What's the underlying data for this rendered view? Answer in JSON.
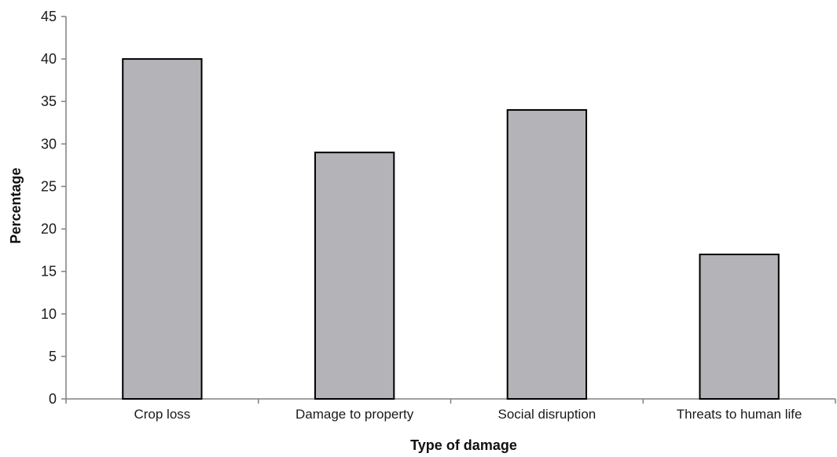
{
  "chart_data": {
    "type": "bar",
    "title": "",
    "xlabel": "Type of damage",
    "ylabel": "Percentage",
    "categories": [
      "Crop loss",
      "Damage to property",
      "Social disruption",
      "Threats to human life"
    ],
    "values": [
      40,
      29,
      34,
      17
    ],
    "ylim": [
      0,
      45
    ],
    "yticks": [
      "0",
      "5",
      "10",
      "15",
      "20",
      "25",
      "30",
      "35",
      "40",
      "45"
    ],
    "grid": false,
    "legend": "none",
    "bar_color": "#b3b3b8",
    "bar_edge_color": "#000000",
    "axis_color": "#808080"
  }
}
